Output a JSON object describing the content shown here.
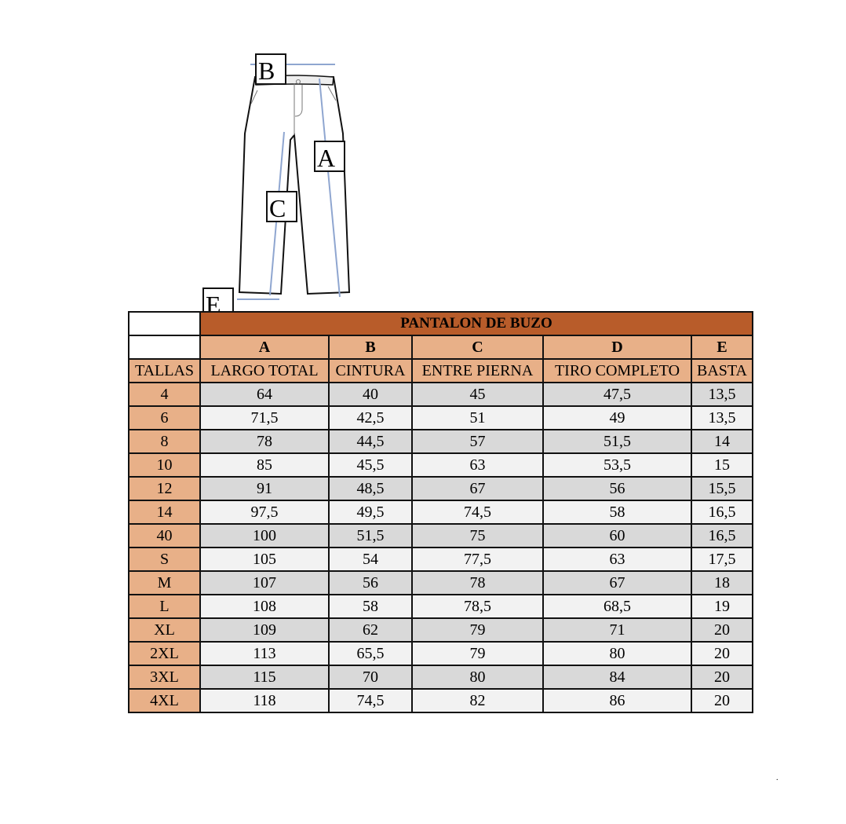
{
  "diagram_labels": {
    "A": "A",
    "B": "B",
    "C": "C",
    "E": "E"
  },
  "table": {
    "title": "PANTALON DE BUZO",
    "letters": [
      "A",
      "B",
      "C",
      "D",
      "E"
    ],
    "size_header": "TALLAS",
    "headers": [
      "LARGO TOTAL",
      "CINTURA",
      "ENTRE PIERNA",
      "TIRO COMPLETO",
      "BASTA"
    ],
    "rows": [
      [
        "4",
        "64",
        "40",
        "45",
        "47,5",
        "13,5"
      ],
      [
        "6",
        "71,5",
        "42,5",
        "51",
        "49",
        "13,5"
      ],
      [
        "8",
        "78",
        "44,5",
        "57",
        "51,5",
        "14"
      ],
      [
        "10",
        "85",
        "45,5",
        "63",
        "53,5",
        "15"
      ],
      [
        "12",
        "91",
        "48,5",
        "67",
        "56",
        "15,5"
      ],
      [
        "14",
        "97,5",
        "49,5",
        "74,5",
        "58",
        "16,5"
      ],
      [
        "40",
        "100",
        "51,5",
        "75",
        "60",
        "16,5"
      ],
      [
        "S",
        "105",
        "54",
        "77,5",
        "63",
        "17,5"
      ],
      [
        "M",
        "107",
        "56",
        "78",
        "67",
        "18"
      ],
      [
        "L",
        "108",
        "58",
        "78,5",
        "68,5",
        "19"
      ],
      [
        "XL",
        "109",
        "62",
        "79",
        "71",
        "20"
      ],
      [
        "2XL",
        "113",
        "65,5",
        "79",
        "80",
        "20"
      ],
      [
        "3XL",
        "115",
        "70",
        "80",
        "84",
        "20"
      ],
      [
        "4XL",
        "118",
        "74,5",
        "82",
        "86",
        "20"
      ]
    ]
  },
  "colors": {
    "title_bg": "#b85c2a",
    "header_bg": "#e8b088",
    "row_dark": "#d9d9d9",
    "row_light": "#f2f2f2"
  }
}
